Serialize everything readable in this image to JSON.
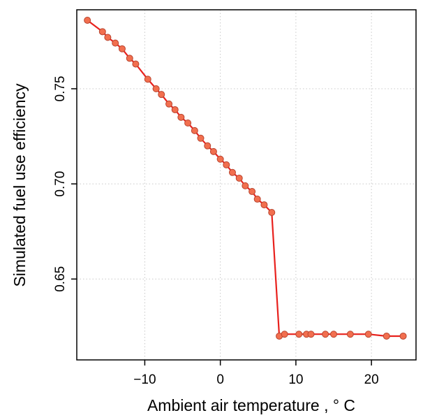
{
  "chart_data": {
    "type": "line",
    "title": "",
    "xlabel": "Ambient air temperature , ° C",
    "ylabel": "Simulated fuel use efficiency",
    "xlim": [
      -19.0,
      25.9
    ],
    "ylim": [
      0.6075,
      0.7915
    ],
    "x_ticks": [
      {
        "value": -10,
        "label": "−10"
      },
      {
        "value": 0,
        "label": "0"
      },
      {
        "value": 10,
        "label": "10"
      },
      {
        "value": 20,
        "label": "20"
      }
    ],
    "y_ticks": [
      {
        "value": 0.65,
        "label": "0.65"
      },
      {
        "value": 0.7,
        "label": "0.70"
      },
      {
        "value": 0.75,
        "label": "0.75"
      }
    ],
    "grid": true,
    "legend": "none",
    "colors": {
      "line": "#e8211d",
      "marker_fill": "#f26f4f",
      "marker_stroke": "#b8442e",
      "grid": "#c8c8c8"
    },
    "series": [
      {
        "x": [
          -17.6,
          -15.6,
          -14.9,
          -13.9,
          -13.0,
          -12.0,
          -11.2,
          -9.6,
          -8.5,
          -7.8,
          -6.8,
          -6.0,
          -5.2,
          -4.3,
          -3.4,
          -2.6,
          -1.7,
          -0.9,
          0.0,
          0.8,
          1.6,
          2.5,
          3.3,
          4.2,
          4.9,
          5.8,
          6.8,
          7.8,
          8.5,
          10.4,
          11.4,
          12.0,
          13.9,
          15.0,
          17.2,
          19.6,
          22.0,
          24.2
        ],
        "y": [
          0.786,
          0.78,
          0.777,
          0.774,
          0.771,
          0.766,
          0.763,
          0.755,
          0.75,
          0.747,
          0.742,
          0.739,
          0.735,
          0.732,
          0.728,
          0.724,
          0.72,
          0.717,
          0.713,
          0.71,
          0.706,
          0.703,
          0.699,
          0.696,
          0.692,
          0.689,
          0.685,
          0.62,
          0.621,
          0.621,
          0.621,
          0.621,
          0.621,
          0.621,
          0.621,
          0.621,
          0.62,
          0.62
        ]
      }
    ]
  }
}
